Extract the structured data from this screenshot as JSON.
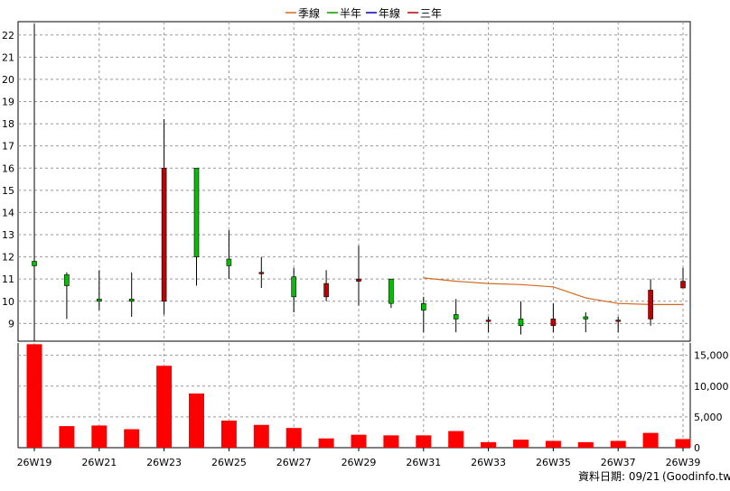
{
  "colors": {
    "up_candle": "#00c000",
    "down_candle": "#c00000",
    "wick": "#000000",
    "volume_bar": "#ff0000",
    "grid": "#999999",
    "line_quarter": "#d2691e",
    "line_halfyear": "#00a000",
    "line_year": "#0000c0",
    "line_3year": "#c00000"
  },
  "chart_data": {
    "type": "candlestick",
    "legend": [
      {
        "name": "季線",
        "color": "#d2691e"
      },
      {
        "name": "半年",
        "color": "#00a000"
      },
      {
        "name": "年線",
        "color": "#0000c0"
      },
      {
        "name": "三年",
        "color": "#c00000"
      }
    ],
    "legend_position": "top-center",
    "grid": true,
    "weeks": [
      "26W19",
      "26W20",
      "26W21",
      "26W22",
      "26W23",
      "26W24",
      "26W25",
      "26W26",
      "26W27",
      "26W28",
      "26W29",
      "26W30",
      "26W31",
      "26W32",
      "26W33",
      "26W34",
      "26W35",
      "26W36",
      "26W37",
      "26W38",
      "26W39"
    ],
    "x_tick_labels": [
      "26W19",
      "26W21",
      "26W23",
      "26W25",
      "26W27",
      "26W29",
      "26W31",
      "26W33",
      "26W35",
      "26W37",
      "26W39"
    ],
    "price_axis": {
      "ylim": [
        8.2,
        22.6
      ],
      "ticks": [
        9,
        10,
        11,
        12,
        13,
        14,
        15,
        16,
        17,
        18,
        19,
        20,
        21,
        22
      ],
      "side": "left"
    },
    "ohlc": [
      {
        "open": 11.6,
        "high": 22.5,
        "low": 8.2,
        "close": 11.8
      },
      {
        "open": 10.7,
        "high": 11.3,
        "low": 9.2,
        "close": 11.2
      },
      {
        "open": 10.0,
        "high": 11.4,
        "low": 9.6,
        "close": 10.1
      },
      {
        "open": 10.0,
        "high": 11.3,
        "low": 9.3,
        "close": 10.1
      },
      {
        "open": 16.0,
        "high": 18.2,
        "low": 9.4,
        "close": 10.0
      },
      {
        "open": 12.0,
        "high": 16.0,
        "low": 10.7,
        "close": 16.0
      },
      {
        "open": 11.6,
        "high": 13.2,
        "low": 11.0,
        "close": 11.9
      },
      {
        "open": 11.3,
        "high": 12.0,
        "low": 10.6,
        "close": 11.25
      },
      {
        "open": 10.2,
        "high": 11.5,
        "low": 9.5,
        "close": 11.1
      },
      {
        "open": 10.8,
        "high": 11.4,
        "low": 10.0,
        "close": 10.2
      },
      {
        "open": 11.0,
        "high": 12.5,
        "low": 9.8,
        "close": 10.9
      },
      {
        "open": 9.9,
        "high": 11.0,
        "low": 9.7,
        "close": 11.0
      },
      {
        "open": 9.6,
        "high": 10.2,
        "low": 8.6,
        "close": 9.9
      },
      {
        "open": 9.2,
        "high": 10.1,
        "low": 8.6,
        "close": 9.4
      },
      {
        "open": 9.15,
        "high": 9.3,
        "low": 8.6,
        "close": 9.1
      },
      {
        "open": 8.9,
        "high": 10.0,
        "low": 8.5,
        "close": 9.2
      },
      {
        "open": 9.2,
        "high": 9.9,
        "low": 8.6,
        "close": 8.9
      },
      {
        "open": 9.2,
        "high": 9.5,
        "low": 8.6,
        "close": 9.3
      },
      {
        "open": 9.15,
        "high": 9.3,
        "low": 8.6,
        "close": 9.1
      },
      {
        "open": 10.5,
        "high": 11.0,
        "low": 8.9,
        "close": 9.2
      },
      {
        "open": 10.9,
        "high": 11.5,
        "low": 10.6,
        "close": 10.6
      }
    ],
    "quarter_line": {
      "start_index": 12,
      "values": [
        11.05,
        10.9,
        10.8,
        10.75,
        10.65,
        10.15,
        9.9,
        9.85,
        9.85
      ]
    },
    "volume_axis": {
      "ylim": [
        0,
        17000
      ],
      "ticks": [
        0,
        5000,
        10000,
        15000
      ],
      "tick_labels": [
        "0",
        "5,000",
        "10,000",
        "15,000"
      ],
      "side": "right"
    },
    "volume": [
      16800,
      3500,
      3600,
      3000,
      13300,
      8800,
      4400,
      3700,
      3200,
      1500,
      2100,
      2000,
      2000,
      2700,
      900,
      1300,
      1100,
      900,
      1100,
      2400,
      1400
    ]
  },
  "footer": {
    "data_date": "資料日期: 09/21",
    "source": "(Goodinfo.tw)"
  }
}
